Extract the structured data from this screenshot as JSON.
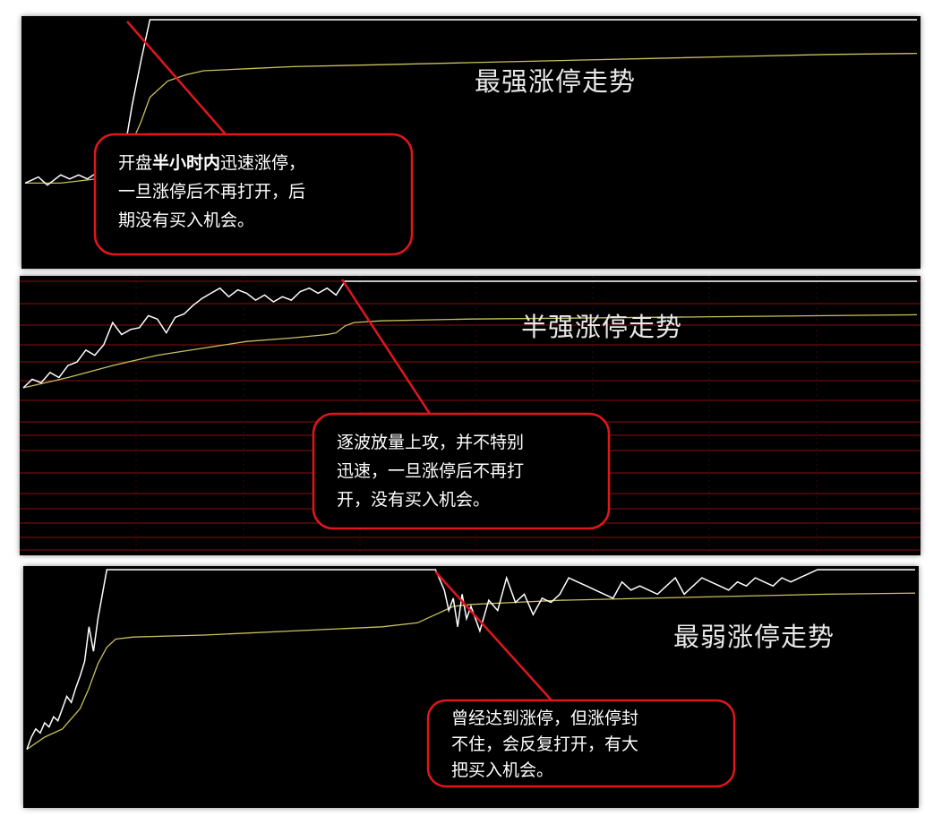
{
  "colors": {
    "background": "#000000",
    "price_line": "#ffffff",
    "avg_line": "#c8c060",
    "callout_border": "#e0161d",
    "grid": "#8a1010",
    "title_text": "#e8e8e8"
  },
  "chart_data": [
    {
      "type": "line",
      "title": "最强涨停走势",
      "annotation": {
        "prefix": "开盘",
        "bold": "半小时内",
        "suffix": "迅速涨停，",
        "line2": "一旦涨停后不再打开，后",
        "line3": "期没有买入机会。"
      },
      "xlim": [
        0,
        100
      ],
      "ylim": [
        0,
        100
      ],
      "grid": false,
      "series": [
        {
          "role": "price",
          "x": [
            0,
            1.5,
            2.5,
            4,
            5,
            6,
            7,
            8,
            9,
            10,
            10.5,
            11,
            11.5,
            12,
            13,
            14,
            15,
            16,
            17,
            18,
            19,
            20,
            21,
            22,
            23,
            24,
            25,
            26,
            27,
            28,
            29,
            30,
            31,
            32,
            33,
            34,
            35,
            36,
            37,
            38,
            39,
            40,
            41,
            42,
            43,
            44,
            45,
            46,
            47,
            48,
            49,
            50,
            52,
            54,
            56,
            58,
            60,
            62,
            64,
            66,
            68,
            70,
            72,
            74,
            76,
            78,
            80,
            82,
            84,
            86,
            88,
            90,
            92,
            94,
            96,
            98,
            100
          ],
          "y": [
            20,
            23,
            19,
            24,
            22,
            24,
            22,
            25,
            24,
            28,
            31,
            36,
            45,
            58,
            80,
            100,
            100,
            100,
            100,
            100,
            100,
            100,
            100,
            100,
            100,
            100,
            100,
            100,
            100,
            100,
            100,
            100,
            100,
            100,
            100,
            100,
            100,
            100,
            100,
            100,
            100,
            100,
            100,
            100,
            100,
            100,
            100,
            100,
            100,
            100,
            100,
            100,
            100,
            100,
            100,
            100,
            100,
            100,
            100,
            100,
            100,
            100,
            100,
            100,
            100,
            100,
            100,
            100,
            100,
            100,
            100,
            100,
            100,
            100,
            100,
            100,
            100
          ]
        },
        {
          "role": "average",
          "x": [
            0,
            4,
            8,
            9,
            10,
            11,
            12,
            13,
            14,
            16,
            18,
            20,
            25,
            30,
            40,
            50,
            60,
            70,
            80,
            90,
            100
          ],
          "y": [
            20,
            20,
            22,
            24,
            28,
            33,
            40,
            50,
            62,
            70,
            73,
            75,
            76,
            77,
            78,
            79,
            80,
            81,
            82,
            83,
            83.5
          ]
        }
      ]
    },
    {
      "type": "line",
      "title": "半强涨停走势",
      "annotation": {
        "line1": "逐波放量上攻，并不特别",
        "line2": "迅速，一旦涨停后不再打",
        "line3": "开，没有买入机会。"
      },
      "xlim": [
        0,
        100
      ],
      "ylim": [
        0,
        100
      ],
      "grid": true,
      "series": [
        {
          "role": "price",
          "x": [
            0,
            1,
            2,
            3,
            4,
            5,
            6,
            7,
            8,
            9,
            10,
            11,
            12,
            13,
            14,
            15,
            16,
            17,
            18,
            19,
            20,
            21,
            22,
            23,
            24,
            25,
            26,
            27,
            28,
            29,
            30,
            31,
            32,
            33,
            34,
            35,
            35.5,
            36,
            40,
            50,
            60,
            70,
            80,
            90,
            100
          ],
          "y": [
            38,
            43,
            41,
            47,
            44,
            51,
            53,
            60,
            57,
            63,
            76,
            69,
            72,
            73,
            80,
            78,
            70,
            79,
            81,
            86,
            90,
            93,
            96,
            91,
            95,
            93,
            89,
            92,
            88,
            91,
            89,
            94,
            96,
            93,
            96,
            92,
            96,
            100,
            100,
            100,
            100,
            100,
            100,
            100,
            100
          ]
        },
        {
          "role": "average",
          "x": [
            0,
            5,
            10,
            15,
            20,
            25,
            30,
            34,
            35,
            36,
            37,
            40,
            50,
            60,
            70,
            80,
            90,
            100
          ],
          "y": [
            38,
            44,
            51,
            57,
            61,
            65,
            67,
            69,
            70,
            74,
            76,
            77,
            78,
            78.5,
            79,
            79.5,
            80,
            80.5
          ]
        }
      ]
    },
    {
      "type": "line",
      "title": "最弱涨停走势",
      "annotation": {
        "line1": "曾经达到涨停，但涨停封",
        "line2": "不住，会反复打开，有大",
        "line3": "把买入机会。"
      },
      "xlim": [
        0,
        100
      ],
      "ylim": [
        0,
        100
      ],
      "grid": false,
      "series": [
        {
          "role": "price",
          "x": [
            0,
            0.5,
            1,
            1.5,
            2,
            2.5,
            3,
            3.5,
            4,
            4.5,
            5,
            5.5,
            6,
            6.5,
            7,
            7.5,
            8,
            9,
            20,
            30,
            40,
            45,
            46,
            47,
            47.5,
            48,
            48.5,
            49,
            49.5,
            50,
            51,
            52,
            53,
            54,
            55,
            56,
            57,
            58,
            59,
            60,
            61,
            62,
            63,
            64,
            65,
            66,
            67,
            68,
            69,
            70,
            71,
            72,
            73,
            74,
            75,
            76,
            77,
            78,
            79,
            80,
            81,
            82,
            83,
            84,
            85,
            86,
            87,
            88,
            89,
            90,
            92,
            94,
            96,
            98,
            100
          ],
          "y": [
            12,
            18,
            22,
            20,
            25,
            23,
            28,
            26,
            32,
            38,
            35,
            42,
            48,
            55,
            72,
            60,
            76,
            100,
            100,
            100,
            100,
            100,
            100,
            90,
            80,
            86,
            72,
            88,
            76,
            82,
            70,
            85,
            80,
            96,
            84,
            88,
            78,
            86,
            84,
            88,
            96,
            94,
            92,
            90,
            88,
            86,
            94,
            90,
            92,
            90,
            88,
            92,
            96,
            88,
            92,
            96,
            94,
            92,
            90,
            94,
            92,
            96,
            94,
            92,
            96,
            94,
            96,
            98,
            100,
            100,
            100,
            100,
            100,
            100,
            100
          ]
        },
        {
          "role": "average",
          "x": [
            0,
            2,
            4,
            6,
            7,
            8,
            9,
            10,
            12,
            20,
            30,
            40,
            44,
            45,
            46,
            47,
            48,
            50,
            55,
            60,
            70,
            80,
            90,
            100
          ],
          "y": [
            12,
            18,
            22,
            32,
            42,
            54,
            62,
            66,
            67,
            68,
            70,
            72,
            74,
            76,
            78,
            80,
            82,
            83,
            84,
            85,
            86,
            87,
            88,
            88.5
          ]
        }
      ]
    }
  ]
}
